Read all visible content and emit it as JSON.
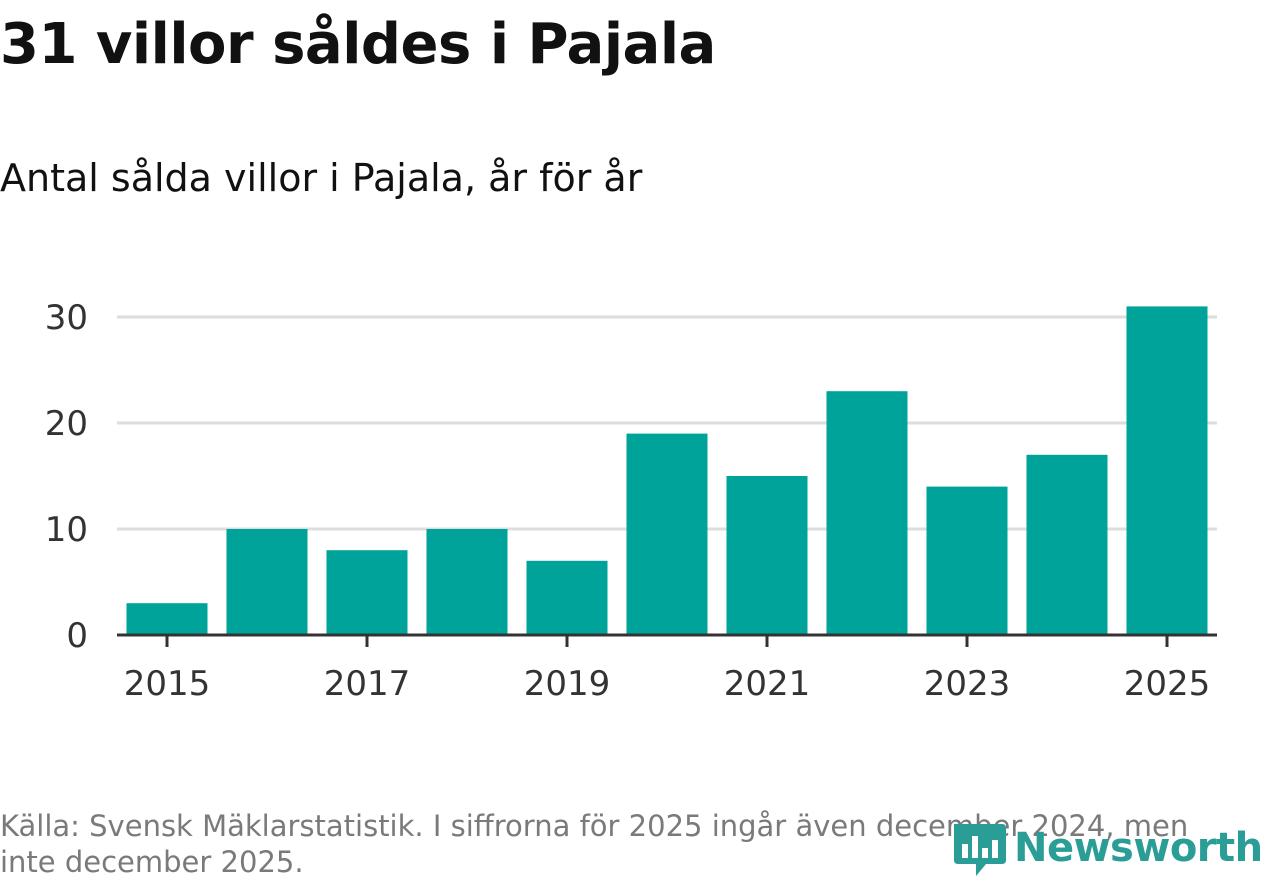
{
  "header": {
    "title": "31 villor såldes i Pajala",
    "subtitle": "Antal sålda villor i Pajala, år för år"
  },
  "footer": {
    "source": "Källa: Svensk Mäklarstatistik. I siffrorna för 2025 ingår även december 2024, men inte december 2025.",
    "brand": "Newsworthy"
  },
  "colors": {
    "bar": "#00a39a",
    "grid": "#dddddd",
    "axis": "#333333",
    "tick_text": "#333333",
    "brand": "#2a9d96"
  },
  "chart_data": {
    "type": "bar",
    "title": "31 villor såldes i Pajala",
    "subtitle": "Antal sålda villor i Pajala, år för år",
    "xlabel": "",
    "ylabel": "",
    "categories": [
      "2015",
      "2016",
      "2017",
      "2018",
      "2019",
      "2020",
      "2021",
      "2022",
      "2023",
      "2024",
      "2025"
    ],
    "values": [
      3,
      10,
      8,
      10,
      7,
      19,
      15,
      23,
      14,
      17,
      31
    ],
    "x_tick_labels": [
      "2015",
      "2017",
      "2019",
      "2021",
      "2023",
      "2025"
    ],
    "y_ticks": [
      0,
      10,
      20,
      30
    ],
    "ylim": [
      0,
      30
    ],
    "grid": true,
    "legend": "none"
  }
}
